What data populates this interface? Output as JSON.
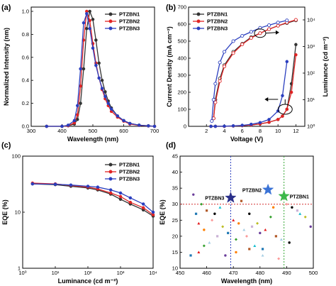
{
  "figure": {
    "panel_labels": [
      "(a)",
      "(b)",
      "(c)",
      "(d)"
    ]
  },
  "colors": {
    "PTZBN1": "#333333",
    "PTZBN2": "#e02424",
    "PTZBN3": "#2b3fbf",
    "star_green": "#3cb84a",
    "star_blue": "#3a73d6",
    "star_navy": "#2a2f8a",
    "ref_red": "#d23030",
    "ref_blue": "#2b3fbf",
    "ref_green": "#38a838"
  },
  "chart_data": [
    {
      "id": "a",
      "type": "line",
      "title": "",
      "xlabel": "Wavelength (nm)",
      "ylabel": "Normalized Intensity (nm)",
      "xlim": [
        300,
        700
      ],
      "ylim": [
        0,
        1.0
      ],
      "xticks": [
        300,
        400,
        500,
        600,
        700
      ],
      "yticks": [
        0.0,
        0.2,
        0.4,
        0.6,
        0.8,
        1.0
      ],
      "legend": "top-right",
      "series": [
        {
          "name": "PTZBN1",
          "marker": "circle",
          "x": [
            350,
            400,
            420,
            440,
            450,
            460,
            470,
            480,
            490,
            500,
            510,
            520,
            530,
            540,
            550,
            560,
            580,
            600,
            620,
            650,
            680,
            700
          ],
          "y": [
            0,
            0,
            0.005,
            0.02,
            0.06,
            0.2,
            0.5,
            0.85,
            1.0,
            0.93,
            0.75,
            0.55,
            0.4,
            0.3,
            0.22,
            0.16,
            0.09,
            0.05,
            0.025,
            0.01,
            0.005,
            0
          ]
        },
        {
          "name": "PTZBN2",
          "marker": "circle",
          "x": [
            350,
            400,
            420,
            440,
            450,
            460,
            470,
            480,
            490,
            500,
            510,
            520,
            530,
            540,
            550,
            560,
            580,
            600,
            620,
            650,
            680,
            700
          ],
          "y": [
            0,
            0,
            0.005,
            0.03,
            0.1,
            0.35,
            0.75,
            1.0,
            0.92,
            0.72,
            0.55,
            0.42,
            0.32,
            0.24,
            0.18,
            0.13,
            0.08,
            0.045,
            0.02,
            0.008,
            0.003,
            0
          ]
        },
        {
          "name": "PTZBN3",
          "marker": "circle",
          "x": [
            350,
            400,
            420,
            440,
            450,
            460,
            470,
            480,
            490,
            500,
            510,
            520,
            530,
            540,
            550,
            560,
            580,
            600,
            620,
            650,
            680,
            700
          ],
          "y": [
            0,
            0,
            0.01,
            0.05,
            0.18,
            0.5,
            0.9,
            0.98,
            0.85,
            0.68,
            0.53,
            0.42,
            0.33,
            0.26,
            0.2,
            0.15,
            0.09,
            0.05,
            0.025,
            0.01,
            0.004,
            0
          ]
        }
      ]
    },
    {
      "id": "b",
      "type": "line",
      "title": "",
      "xlabel": "Voltage (V)",
      "ylabel": "Current Density (mA cm⁻²)",
      "y2label": "Luminance (cd m⁻²)",
      "xlim": [
        0,
        13
      ],
      "ylim": [
        0,
        700
      ],
      "y2lim_log": [
        0,
        4
      ],
      "xticks": [
        2,
        4,
        6,
        8,
        10,
        12
      ],
      "yticks": [
        0,
        100,
        200,
        300,
        400,
        500,
        600,
        700
      ],
      "y2ticks_text": [
        "10⁰",
        "10¹",
        "10²",
        "10³",
        "10⁴"
      ],
      "legend": "top-left",
      "current_density": [
        {
          "name": "PTZBN1",
          "marker": "circle-filled",
          "x": [
            2.5,
            3,
            4,
            5,
            6,
            7,
            8,
            9,
            10,
            10.5,
            11,
            11.5,
            12
          ],
          "y": [
            0,
            0,
            0,
            2,
            4,
            8,
            14,
            24,
            40,
            60,
            100,
            250,
            480
          ]
        },
        {
          "name": "PTZBN2",
          "marker": "circle-filled",
          "x": [
            2.5,
            3,
            4,
            5,
            6,
            7,
            8,
            9,
            10,
            10.5,
            11,
            11.5,
            12
          ],
          "y": [
            0,
            0,
            0,
            2,
            4,
            8,
            14,
            24,
            40,
            60,
            100,
            200,
            420
          ]
        },
        {
          "name": "PTZBN3",
          "marker": "circle-filled",
          "x": [
            2.5,
            3,
            4,
            5,
            6,
            7,
            8,
            9,
            10,
            10.5,
            11
          ],
          "y": [
            0,
            0,
            1,
            3,
            6,
            12,
            22,
            40,
            90,
            180,
            380
          ]
        }
      ],
      "luminance": [
        {
          "name": "PTZBN1",
          "marker": "circle-open",
          "x": [
            2.8,
            3,
            3.5,
            4,
            5,
            6,
            7,
            8,
            9,
            10,
            11,
            12
          ],
          "y": [
            0.3,
            1.0,
            1.8,
            2.3,
            2.8,
            3.1,
            3.35,
            3.5,
            3.65,
            3.78,
            3.88,
            3.98
          ]
        },
        {
          "name": "PTZBN2",
          "marker": "circle-open",
          "x": [
            2.8,
            3,
            3.5,
            4,
            5,
            6,
            7,
            8,
            9,
            10,
            11,
            12
          ],
          "y": [
            0.3,
            0.9,
            1.7,
            2.25,
            2.75,
            3.08,
            3.32,
            3.5,
            3.65,
            3.78,
            3.9,
            4.0
          ]
        },
        {
          "name": "PTZBN3",
          "marker": "circle-open",
          "x": [
            2.6,
            2.8,
            3,
            3.5,
            4,
            5,
            6,
            7,
            8,
            9,
            10,
            11
          ],
          "y": [
            0.2,
            1.0,
            1.6,
            2.4,
            2.8,
            3.2,
            3.4,
            3.55,
            3.7,
            3.8,
            3.9,
            3.98
          ]
        }
      ]
    },
    {
      "id": "c",
      "type": "line",
      "title": "",
      "xlabel": "Luminance (cd m⁻²)",
      "ylabel": "EQE (%)",
      "xscale": "log",
      "yscale": "log",
      "xlim_exp": [
        0,
        4
      ],
      "ylim": [
        1,
        100
      ],
      "xticks_text": [
        "10⁰",
        "10¹",
        "10²",
        "10³",
        "10⁴"
      ],
      "yticks": [
        1,
        10,
        100
      ],
      "legend": "top-right",
      "series": [
        {
          "name": "PTZBN1",
          "marker": "circle",
          "x": [
            2,
            10,
            30,
            100,
            200,
            500,
            1000,
            2000,
            5000,
            10000
          ],
          "y": [
            32,
            31,
            29,
            27,
            25,
            21,
            17,
            14,
            11,
            8.5
          ]
        },
        {
          "name": "PTZBN2",
          "marker": "circle",
          "x": [
            2,
            10,
            30,
            100,
            200,
            500,
            1000,
            2000,
            5000,
            10000
          ],
          "y": [
            33,
            32,
            30,
            28,
            26,
            22,
            19,
            15,
            12,
            9
          ]
        },
        {
          "name": "PTZBN3",
          "marker": "circle",
          "x": [
            2,
            10,
            30,
            100,
            200,
            500,
            1000,
            2000,
            5000,
            10000
          ],
          "y": [
            32,
            31.5,
            30.5,
            29,
            28,
            25,
            22,
            18,
            14,
            10
          ]
        }
      ]
    },
    {
      "id": "d",
      "type": "scatter",
      "title": "",
      "xlabel": "Wavelength (nm)",
      "ylabel": "EQE (%)",
      "xlim": [
        450,
        500
      ],
      "ylim": [
        10,
        45
      ],
      "xticks": [
        450,
        460,
        470,
        480,
        490,
        500
      ],
      "yticks": [
        10,
        15,
        20,
        25,
        30,
        35,
        40,
        45
      ],
      "hline": 30,
      "vlines": [
        469,
        489
      ],
      "highlight": [
        {
          "name": "PTZBN1",
          "x": 489,
          "y": 32.5,
          "color": "star_green"
        },
        {
          "name": "PTZBN2",
          "x": 483,
          "y": 34.5,
          "color": "star_blue"
        },
        {
          "name": "PTZBN3",
          "x": 469,
          "y": 32,
          "color": "star_navy"
        }
      ],
      "literature_points": [
        {
          "x": 455,
          "y": 33
        },
        {
          "x": 456,
          "y": 27
        },
        {
          "x": 457,
          "y": 24
        },
        {
          "x": 458,
          "y": 30
        },
        {
          "x": 459,
          "y": 22
        },
        {
          "x": 460,
          "y": 28
        },
        {
          "x": 461,
          "y": 18
        },
        {
          "x": 462,
          "y": 25
        },
        {
          "x": 463,
          "y": 27
        },
        {
          "x": 464,
          "y": 20
        },
        {
          "x": 465,
          "y": 29
        },
        {
          "x": 466,
          "y": 23
        },
        {
          "x": 467,
          "y": 14
        },
        {
          "x": 468,
          "y": 21
        },
        {
          "x": 470,
          "y": 25
        },
        {
          "x": 471,
          "y": 19
        },
        {
          "x": 472,
          "y": 24
        },
        {
          "x": 473,
          "y": 31
        },
        {
          "x": 474,
          "y": 22
        },
        {
          "x": 475,
          "y": 20
        },
        {
          "x": 476,
          "y": 27
        },
        {
          "x": 477,
          "y": 23
        },
        {
          "x": 478,
          "y": 17
        },
        {
          "x": 479,
          "y": 24
        },
        {
          "x": 480,
          "y": 21
        },
        {
          "x": 481,
          "y": 16
        },
        {
          "x": 482,
          "y": 22
        },
        {
          "x": 484,
          "y": 26
        },
        {
          "x": 485,
          "y": 29
        },
        {
          "x": 486,
          "y": 20
        },
        {
          "x": 488,
          "y": 19
        },
        {
          "x": 490,
          "y": 30
        },
        {
          "x": 492,
          "y": 29
        },
        {
          "x": 494,
          "y": 28
        },
        {
          "x": 495,
          "y": 27
        },
        {
          "x": 497,
          "y": 26
        },
        {
          "x": 499,
          "y": 23
        },
        {
          "x": 454,
          "y": 14
        },
        {
          "x": 457,
          "y": 15
        },
        {
          "x": 459,
          "y": 17
        },
        {
          "x": 471,
          "y": 15
        },
        {
          "x": 476,
          "y": 16
        },
        {
          "x": 481,
          "y": 14
        },
        {
          "x": 487,
          "y": 13
        },
        {
          "x": 491,
          "y": 18
        }
      ]
    }
  ]
}
